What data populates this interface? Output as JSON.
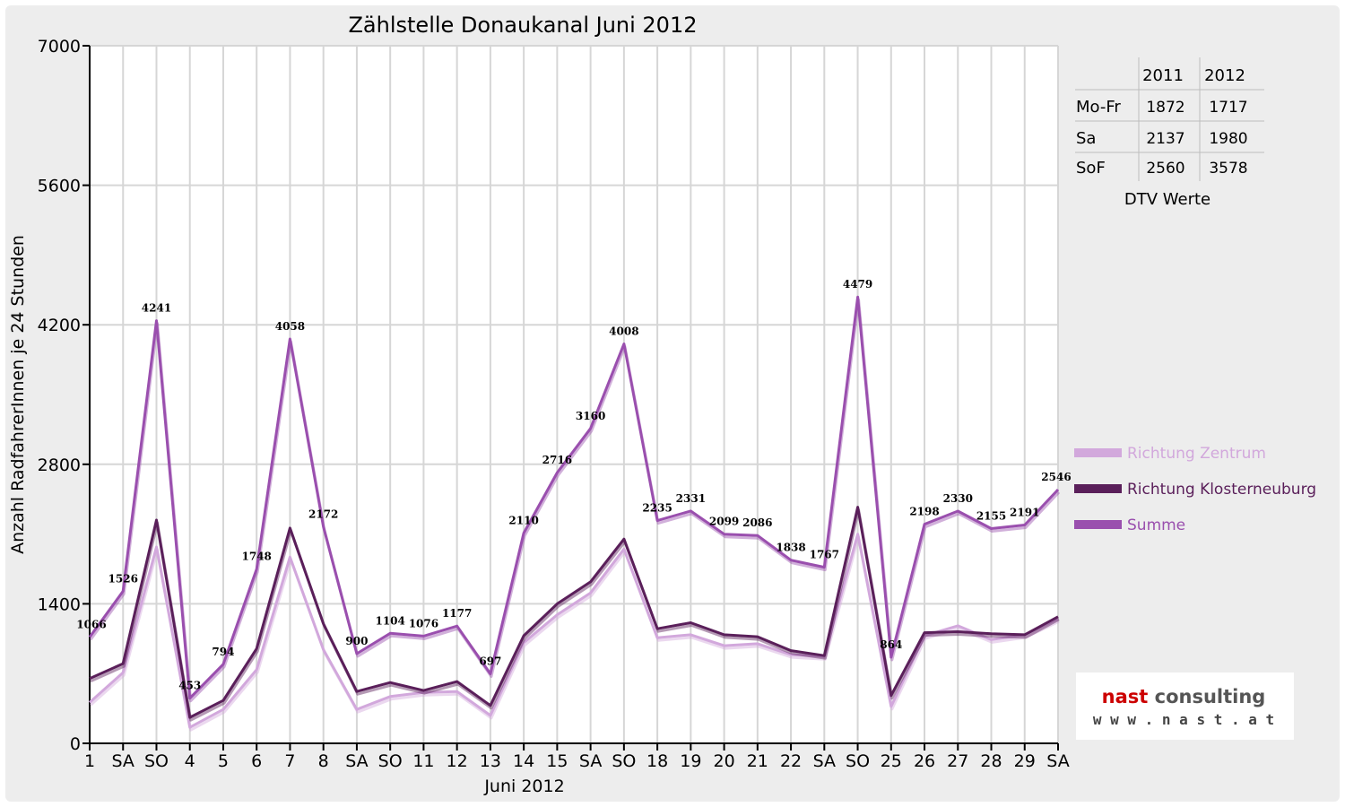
{
  "chart_data": {
    "type": "line",
    "title": "Zählstelle Donaukanal Juni 2012",
    "xlabel": "Juni 2012",
    "ylabel": "Anzahl RadfahrerInnen je 24 Stunden",
    "ylim": [
      0,
      7000
    ],
    "yticks": [
      "0",
      "1400",
      "2800",
      "4200",
      "5600",
      "7000"
    ],
    "grid": true,
    "legend_position": "right",
    "categories": [
      "1",
      "SA",
      "SO",
      "4",
      "5",
      "6",
      "7",
      "8",
      "SA",
      "SO",
      "11",
      "12",
      "13",
      "14",
      "15",
      "SA",
      "SO",
      "18",
      "19",
      "20",
      "21",
      "22",
      "SA",
      "SO",
      "25",
      "26",
      "27",
      "28",
      "29",
      "SA"
    ],
    "holiday_indices": [
      2,
      6,
      9,
      16,
      23
    ],
    "holiday_color": "#ff0000",
    "series": [
      {
        "name": "Richtung Zentrum",
        "color": "#d2a8dc",
        "values": [
          410,
          710,
          1970,
          160,
          340,
          740,
          1870,
          940,
          340,
          470,
          510,
          520,
          280,
          1010,
          1290,
          1510,
          1950,
          1060,
          1090,
          980,
          1000,
          890,
          870,
          2100,
          370,
          1080,
          1180,
          1040,
          1090,
          1250
        ]
      },
      {
        "name": "Richtung Klosterneuburg",
        "color": "#5a1f5a",
        "values": [
          650,
          800,
          2240,
          260,
          430,
          950,
          2160,
          1200,
          520,
          610,
          530,
          620,
          380,
          1080,
          1400,
          1620,
          2050,
          1150,
          1210,
          1090,
          1070,
          930,
          880,
          2370,
          480,
          1110,
          1120,
          1100,
          1090,
          1270
        ]
      },
      {
        "name": "Summe",
        "color": "#9a4fae",
        "values": [
          1066,
          1526,
          4241,
          453,
          794,
          1748,
          4058,
          2172,
          900,
          1104,
          1076,
          1177,
          697,
          2110,
          2716,
          3160,
          4008,
          2235,
          2331,
          2099,
          2086,
          1838,
          1767,
          4479,
          864,
          2198,
          2330,
          2155,
          2191,
          2546
        ]
      }
    ],
    "data_labels": [
      "1066",
      "1526",
      "4241",
      "453",
      "794",
      "1748",
      "4058",
      "2172",
      "900",
      "1104",
      "1076",
      "1177",
      "697",
      "2110",
      "2716",
      "3160",
      "4008",
      "2235",
      "2331",
      "2099",
      "2086",
      "1838",
      "1767",
      "4479",
      "864",
      "2198",
      "2330",
      "2155",
      "2191",
      "2546"
    ]
  },
  "dtv_table": {
    "headers": [
      "",
      "2011",
      "2012"
    ],
    "rows": [
      {
        "label": "Mo-Fr",
        "v2011": "1872",
        "v2012": "1717"
      },
      {
        "label": "Sa",
        "v2011": "2137",
        "v2012": "1980"
      },
      {
        "label": "SoF",
        "v2011": "2560",
        "v2012": "3578"
      }
    ],
    "caption": "DTV Werte"
  },
  "logo": {
    "name": "nast consulting",
    "url_text": "w w w . n a s t . a t"
  }
}
